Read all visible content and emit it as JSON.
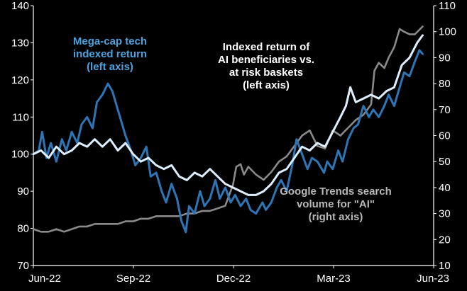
{
  "chart_data": {
    "type": "line",
    "x_labels": [
      "Jun-22",
      "Sep-22",
      "Dec-22",
      "Mar-23",
      "Jun-23"
    ],
    "x_range": [
      "2022-06-01",
      "2023-06-01"
    ],
    "left_axis": {
      "ylim": [
        70,
        140
      ],
      "ticks": [
        70,
        80,
        90,
        100,
        110,
        120,
        130,
        140
      ]
    },
    "right_axis": {
      "ylim": [
        10,
        110
      ],
      "ticks": [
        10,
        20,
        30,
        40,
        50,
        60,
        70,
        80,
        90,
        100,
        110
      ]
    },
    "colors": {
      "background": "#000000",
      "axis": "#ffffff",
      "mega_cap": "#2e75b6",
      "ai_baskets": "#ddeeff",
      "google_trends": "#8a8a8a",
      "mega_cap_label": "#4aa3df",
      "ai_label": "#ffffff",
      "trends_label": "#b8b8b8"
    },
    "annotations": {
      "mega_cap": [
        "Mega-cap tech",
        "indexed return",
        "(left axis)"
      ],
      "ai_baskets": [
        "Indexed return of",
        "AI beneficiaries vs.",
        "at risk baskets",
        "(left axis)"
      ],
      "google_trends": [
        "Google Trends search",
        "volume for \"AI\"",
        "(right axis)"
      ]
    },
    "series": [
      {
        "name": "Mega-cap tech indexed return",
        "axis": "left",
        "color_key": "mega_cap",
        "points": [
          [
            "2022-06-01",
            100
          ],
          [
            "2022-06-06",
            101
          ],
          [
            "2022-06-09",
            106
          ],
          [
            "2022-06-13",
            99
          ],
          [
            "2022-06-17",
            103
          ],
          [
            "2022-06-22",
            98
          ],
          [
            "2022-06-27",
            104
          ],
          [
            "2022-07-01",
            101
          ],
          [
            "2022-07-06",
            106
          ],
          [
            "2022-07-11",
            103
          ],
          [
            "2022-07-15",
            108
          ],
          [
            "2022-07-20",
            110
          ],
          [
            "2022-07-25",
            107
          ],
          [
            "2022-07-29",
            114
          ],
          [
            "2022-08-03",
            116
          ],
          [
            "2022-08-08",
            119
          ],
          [
            "2022-08-12",
            117
          ],
          [
            "2022-08-16",
            113
          ],
          [
            "2022-08-19",
            110
          ],
          [
            "2022-08-24",
            105
          ],
          [
            "2022-08-29",
            101
          ],
          [
            "2022-09-02",
            97
          ],
          [
            "2022-09-07",
            99
          ],
          [
            "2022-09-12",
            102
          ],
          [
            "2022-09-16",
            94
          ],
          [
            "2022-09-21",
            95
          ],
          [
            "2022-09-26",
            90
          ],
          [
            "2022-09-30",
            87
          ],
          [
            "2022-10-05",
            92
          ],
          [
            "2022-10-10",
            88
          ],
          [
            "2022-10-14",
            82
          ],
          [
            "2022-10-18",
            79
          ],
          [
            "2022-10-21",
            86
          ],
          [
            "2022-10-26",
            84
          ],
          [
            "2022-10-31",
            90
          ],
          [
            "2022-11-04",
            86
          ],
          [
            "2022-11-09",
            88
          ],
          [
            "2022-11-14",
            93
          ],
          [
            "2022-11-18",
            88
          ],
          [
            "2022-11-23",
            91
          ],
          [
            "2022-11-28",
            87
          ],
          [
            "2022-12-02",
            89
          ],
          [
            "2022-12-07",
            86
          ],
          [
            "2022-12-12",
            88
          ],
          [
            "2022-12-16",
            85
          ],
          [
            "2022-12-21",
            84
          ],
          [
            "2022-12-27",
            87
          ],
          [
            "2022-12-30",
            85
          ],
          [
            "2023-01-04",
            87
          ],
          [
            "2023-01-09",
            91
          ],
          [
            "2023-01-13",
            93
          ],
          [
            "2023-01-18",
            90
          ],
          [
            "2023-01-23",
            97
          ],
          [
            "2023-01-27",
            104
          ],
          [
            "2023-02-01",
            100
          ],
          [
            "2023-02-06",
            96
          ],
          [
            "2023-02-10",
            99
          ],
          [
            "2023-02-15",
            98
          ],
          [
            "2023-02-21",
            95
          ],
          [
            "2023-02-24",
            98
          ],
          [
            "2023-03-01",
            96
          ],
          [
            "2023-03-06",
            101
          ],
          [
            "2023-03-10",
            98
          ],
          [
            "2023-03-15",
            104
          ],
          [
            "2023-03-20",
            107
          ],
          [
            "2023-03-24",
            108
          ],
          [
            "2023-03-29",
            113
          ],
          [
            "2023-04-03",
            110
          ],
          [
            "2023-04-07",
            112
          ],
          [
            "2023-04-12",
            110
          ],
          [
            "2023-04-17",
            113
          ],
          [
            "2023-04-21",
            116
          ],
          [
            "2023-04-26",
            113
          ],
          [
            "2023-05-01",
            118
          ],
          [
            "2023-05-05",
            122
          ],
          [
            "2023-05-10",
            121
          ],
          [
            "2023-05-15",
            125
          ],
          [
            "2023-05-19",
            128
          ],
          [
            "2023-05-22",
            127
          ]
        ]
      },
      {
        "name": "AI beneficiaries vs. at risk baskets indexed return",
        "axis": "left",
        "color_key": "ai_baskets",
        "points": [
          [
            "2022-06-01",
            100
          ],
          [
            "2022-06-08",
            101
          ],
          [
            "2022-06-15",
            99
          ],
          [
            "2022-06-22",
            102
          ],
          [
            "2022-06-29",
            100
          ],
          [
            "2022-07-06",
            101
          ],
          [
            "2022-07-13",
            103
          ],
          [
            "2022-07-20",
            102
          ],
          [
            "2022-07-27",
            104
          ],
          [
            "2022-08-03",
            102
          ],
          [
            "2022-08-10",
            104
          ],
          [
            "2022-08-17",
            101
          ],
          [
            "2022-08-24",
            103
          ],
          [
            "2022-08-31",
            100
          ],
          [
            "2022-09-07",
            98
          ],
          [
            "2022-09-14",
            99
          ],
          [
            "2022-09-21",
            97
          ],
          [
            "2022-09-28",
            96
          ],
          [
            "2022-10-05",
            97
          ],
          [
            "2022-10-12",
            94
          ],
          [
            "2022-10-19",
            93
          ],
          [
            "2022-10-26",
            95
          ],
          [
            "2022-11-02",
            94
          ],
          [
            "2022-11-09",
            96
          ],
          [
            "2022-11-16",
            94
          ],
          [
            "2022-11-23",
            92
          ],
          [
            "2022-11-30",
            91
          ],
          [
            "2022-12-07",
            90
          ],
          [
            "2022-12-14",
            89
          ],
          [
            "2022-12-21",
            89
          ],
          [
            "2022-12-28",
            90
          ],
          [
            "2023-01-04",
            92
          ],
          [
            "2023-01-11",
            95
          ],
          [
            "2023-01-18",
            96
          ],
          [
            "2023-01-25",
            99
          ],
          [
            "2023-02-01",
            102
          ],
          [
            "2023-02-08",
            101
          ],
          [
            "2023-02-15",
            103
          ],
          [
            "2023-02-22",
            102
          ],
          [
            "2023-03-01",
            106
          ],
          [
            "2023-03-08",
            110
          ],
          [
            "2023-03-13",
            113
          ],
          [
            "2023-03-17",
            118
          ],
          [
            "2023-03-22",
            114
          ],
          [
            "2023-03-29",
            115
          ],
          [
            "2023-04-05",
            116
          ],
          [
            "2023-04-12",
            115
          ],
          [
            "2023-04-19",
            117
          ],
          [
            "2023-04-26",
            118
          ],
          [
            "2023-05-03",
            124
          ],
          [
            "2023-05-10",
            126
          ],
          [
            "2023-05-17",
            130
          ],
          [
            "2023-05-22",
            132
          ]
        ]
      },
      {
        "name": "Google Trends search volume for \"AI\"",
        "axis": "right",
        "color_key": "google_trends",
        "points": [
          [
            "2022-06-01",
            24
          ],
          [
            "2022-06-08",
            23
          ],
          [
            "2022-06-15",
            23
          ],
          [
            "2022-06-22",
            24
          ],
          [
            "2022-06-29",
            23
          ],
          [
            "2022-07-06",
            24
          ],
          [
            "2022-07-13",
            25
          ],
          [
            "2022-07-20",
            25
          ],
          [
            "2022-07-27",
            26
          ],
          [
            "2022-08-03",
            26
          ],
          [
            "2022-08-10",
            26
          ],
          [
            "2022-08-17",
            26
          ],
          [
            "2022-08-24",
            27
          ],
          [
            "2022-08-31",
            27
          ],
          [
            "2022-09-07",
            28
          ],
          [
            "2022-09-14",
            28
          ],
          [
            "2022-09-21",
            29
          ],
          [
            "2022-09-28",
            29
          ],
          [
            "2022-10-05",
            29
          ],
          [
            "2022-10-12",
            29
          ],
          [
            "2022-10-19",
            30
          ],
          [
            "2022-10-26",
            30
          ],
          [
            "2022-11-02",
            31
          ],
          [
            "2022-11-09",
            31
          ],
          [
            "2022-11-16",
            32
          ],
          [
            "2022-11-23",
            33
          ],
          [
            "2022-11-30",
            41
          ],
          [
            "2022-12-03",
            48
          ],
          [
            "2022-12-07",
            49
          ],
          [
            "2022-12-10",
            45
          ],
          [
            "2022-12-14",
            48
          ],
          [
            "2022-12-21",
            45
          ],
          [
            "2022-12-28",
            43
          ],
          [
            "2023-01-04",
            46
          ],
          [
            "2023-01-11",
            50
          ],
          [
            "2023-01-18",
            52
          ],
          [
            "2023-01-25",
            56
          ],
          [
            "2023-02-01",
            60
          ],
          [
            "2023-02-08",
            62
          ],
          [
            "2023-02-15",
            56
          ],
          [
            "2023-02-22",
            55
          ],
          [
            "2023-03-01",
            62
          ],
          [
            "2023-03-08",
            60
          ],
          [
            "2023-03-15",
            63
          ],
          [
            "2023-03-22",
            66
          ],
          [
            "2023-03-29",
            68
          ],
          [
            "2023-04-05",
            72
          ],
          [
            "2023-04-08",
            85
          ],
          [
            "2023-04-12",
            88
          ],
          [
            "2023-04-17",
            86
          ],
          [
            "2023-04-21",
            90
          ],
          [
            "2023-04-26",
            94
          ],
          [
            "2023-05-01",
            101
          ],
          [
            "2023-05-05",
            100
          ],
          [
            "2023-05-10",
            99
          ],
          [
            "2023-05-15",
            99
          ],
          [
            "2023-05-22",
            102
          ]
        ]
      }
    ]
  }
}
